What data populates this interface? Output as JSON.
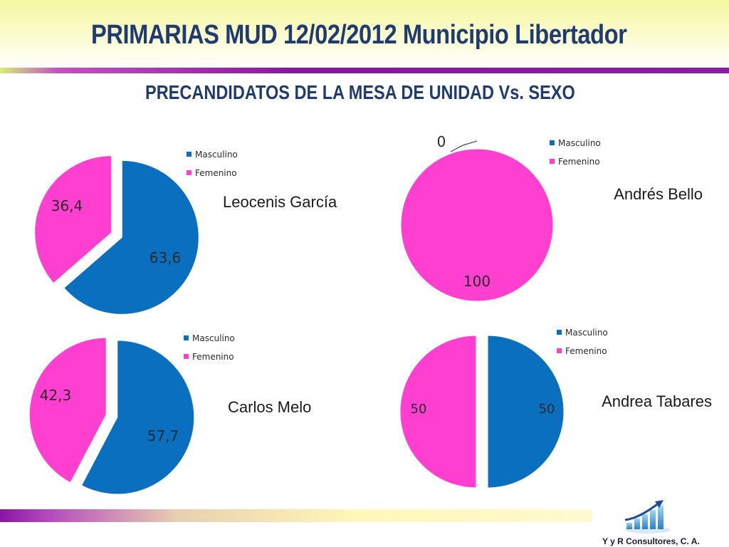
{
  "header": {
    "title": "PRIMARIAS MUD 12/02/2012  Municipio Libertador",
    "subtitle": "PRECANDIDATOS DE LA MESA DE UNIDAD  Vs.  SEXO"
  },
  "footer": {
    "credit": "Y y R Consultores, C. A."
  },
  "colors": {
    "masculino": "#0a6fbe",
    "femenino": "#ff3fcf",
    "text": "#2a2a2a"
  },
  "chart_data": [
    {
      "type": "pie",
      "title": "Leocenis García",
      "categories": [
        "Masculino",
        "Femenino"
      ],
      "values": [
        63.6,
        36.4
      ],
      "data_labels": [
        "63,6",
        "36,4"
      ],
      "legend": [
        "Masculino",
        "Femenino"
      ]
    },
    {
      "type": "pie",
      "title": "Andrés Bello",
      "categories": [
        "Masculino",
        "Femenino"
      ],
      "values": [
        0,
        100
      ],
      "data_labels": [
        "0",
        "100"
      ],
      "legend": [
        "Masculino",
        "Femenino"
      ]
    },
    {
      "type": "pie",
      "title": "Carlos Melo",
      "categories": [
        "Masculino",
        "Femenino"
      ],
      "values": [
        57.7,
        42.3
      ],
      "data_labels": [
        "57,7",
        "42,3"
      ],
      "legend": [
        "Masculino",
        "Femenino"
      ]
    },
    {
      "type": "pie",
      "title": "Andrea Tabares",
      "categories": [
        "Masculino",
        "Femenino"
      ],
      "values": [
        50,
        50
      ],
      "data_labels": [
        "50",
        "50"
      ],
      "legend": [
        "Masculino",
        "Femenino"
      ]
    }
  ]
}
